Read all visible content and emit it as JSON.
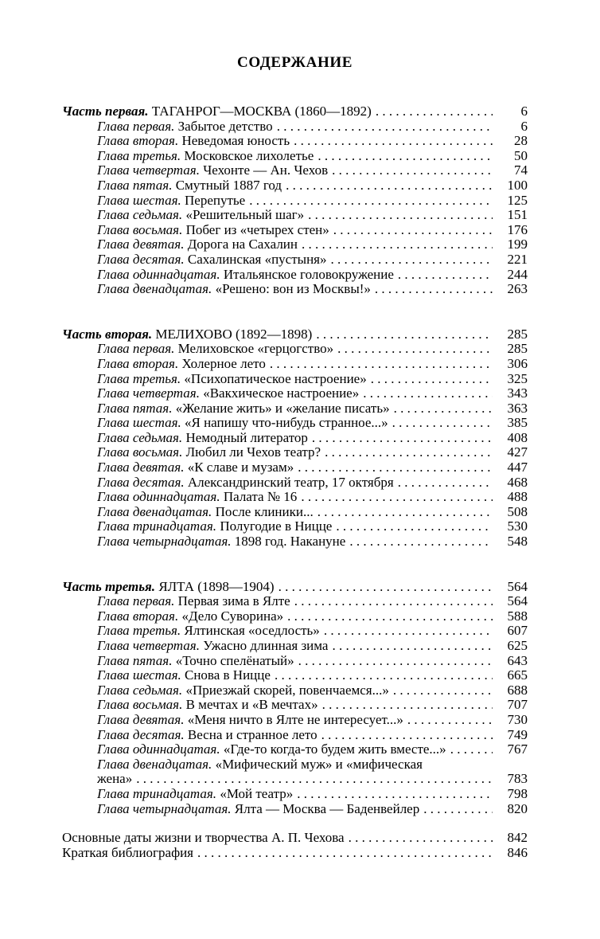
{
  "page_title": "СОДЕРЖАНИЕ",
  "colors": {
    "text": "#000000",
    "background": "#ffffff"
  },
  "sections": [
    {
      "part_label": "Часть первая.",
      "part_title": "ТАГАНРОГ—МОСКВА (1860—1892)",
      "page": "6",
      "chapters": [
        {
          "label": "Глава первая.",
          "title": "Забытое детство",
          "page": "6"
        },
        {
          "label": "Глава вторая.",
          "title": "Неведомая юность",
          "page": "28"
        },
        {
          "label": "Глава третья.",
          "title": "Московское лихолетье",
          "page": "50"
        },
        {
          "label": "Глава четвертая.",
          "title": "Чехонте — Ан. Чехов",
          "page": "74"
        },
        {
          "label": "Глава пятая.",
          "title": "Смутный 1887 год",
          "page": "100"
        },
        {
          "label": "Глава шестая.",
          "title": "Перепутье",
          "page": "125"
        },
        {
          "label": "Глава седьмая.",
          "title": "«Решительный шаг»",
          "page": "151"
        },
        {
          "label": "Глава восьмая.",
          "title": "Побег из «четырех стен»",
          "page": "176"
        },
        {
          "label": "Глава девятая.",
          "title": "Дорога на Сахалин",
          "page": "199"
        },
        {
          "label": "Глава десятая.",
          "title": "Сахалинская «пустыня»",
          "page": "221"
        },
        {
          "label": "Глава одиннадцатая.",
          "title": "Итальянское головокружение",
          "page": "244"
        },
        {
          "label": "Глава двенадцатая.",
          "title": "«Решено: вон из Москвы!»",
          "page": "263"
        }
      ]
    },
    {
      "part_label": "Часть вторая.",
      "part_title": "МЕЛИХОВО (1892—1898)",
      "page": "285",
      "chapters": [
        {
          "label": "Глава первая.",
          "title": "Мелиховское «герцогство»",
          "page": "285"
        },
        {
          "label": "Глава вторая.",
          "title": "Холерное лето",
          "page": "306"
        },
        {
          "label": "Глава третья.",
          "title": "«Психопатическое настроение»",
          "page": "325"
        },
        {
          "label": "Глава четвертая.",
          "title": "«Вакхическое настроение»",
          "page": "343"
        },
        {
          "label": "Глава пятая.",
          "title": "«Желание жить» и «желание писать»",
          "page": "363"
        },
        {
          "label": "Глава шестая.",
          "title": "«Я напишу что-нибудь странное...»",
          "page": "385"
        },
        {
          "label": "Глава седьмая.",
          "title": "Немодный литератор",
          "page": "408"
        },
        {
          "label": "Глава восьмая.",
          "title": "Любил ли Чехов театр?",
          "page": "427"
        },
        {
          "label": "Глава девятая.",
          "title": "«К славе и музам»",
          "page": "447"
        },
        {
          "label": "Глава десятая.",
          "title": "Александринский театр, 17 октября",
          "page": "468"
        },
        {
          "label": "Глава одиннадцатая.",
          "title": "Палата № 16",
          "page": "488"
        },
        {
          "label": "Глава двенадцатая.",
          "title": "После клиники...",
          "page": "508"
        },
        {
          "label": "Глава тринадцатая.",
          "title": "Полугодие в Ницце",
          "page": "530"
        },
        {
          "label": "Глава четырнадцатая.",
          "title": "1898 год. Накануне",
          "page": "548"
        }
      ]
    },
    {
      "part_label": "Часть третья.",
      "part_title": "ЯЛТА (1898—1904)",
      "page": "564",
      "chapters": [
        {
          "label": "Глава первая.",
          "title": "Первая зима в Ялте",
          "page": "564"
        },
        {
          "label": "Глава вторая.",
          "title": "«Дело Суворина»",
          "page": "588"
        },
        {
          "label": "Глава третья.",
          "title": "Ялтинская «оседлость»",
          "page": "607"
        },
        {
          "label": "Глава четвертая.",
          "title": "Ужасно длинная зима",
          "page": "625"
        },
        {
          "label": "Глава пятая.",
          "title": "«Точно спелёнатый»",
          "page": "643"
        },
        {
          "label": "Глава шестая.",
          "title": "Снова в Ницце",
          "page": "665"
        },
        {
          "label": "Глава седьмая.",
          "title": "«Приезжай скорей, повенчаемся...»",
          "page": "688"
        },
        {
          "label": "Глава восьмая.",
          "title": "В мечтах и «В мечтах»",
          "page": "707"
        },
        {
          "label": "Глава девятая.",
          "title": "«Меня ничто в Ялте не интересует...»",
          "page": "730"
        },
        {
          "label": "Глава десятая.",
          "title": "Весна и странное лето",
          "page": "749"
        },
        {
          "label": "Глава одиннадцатая.",
          "title": "«Где-то когда-то будем жить вместе...»",
          "page": "767"
        },
        {
          "label": "Глава двенадцатая.",
          "title": "«Мифический муж» и «мифическая",
          "continuation": "жена»",
          "page": "783"
        },
        {
          "label": "Глава тринадцатая.",
          "title": "«Мой театр»",
          "page": "798"
        },
        {
          "label": "Глава четырнадцатая.",
          "title": "Ялта — Москва — Баденвейлер",
          "page": "820"
        }
      ]
    }
  ],
  "appendix_entries": [
    {
      "title": "Основные даты жизни и творчества А. П. Чехова",
      "page": "842"
    },
    {
      "title": "Краткая библиография",
      "page": "846"
    }
  ]
}
